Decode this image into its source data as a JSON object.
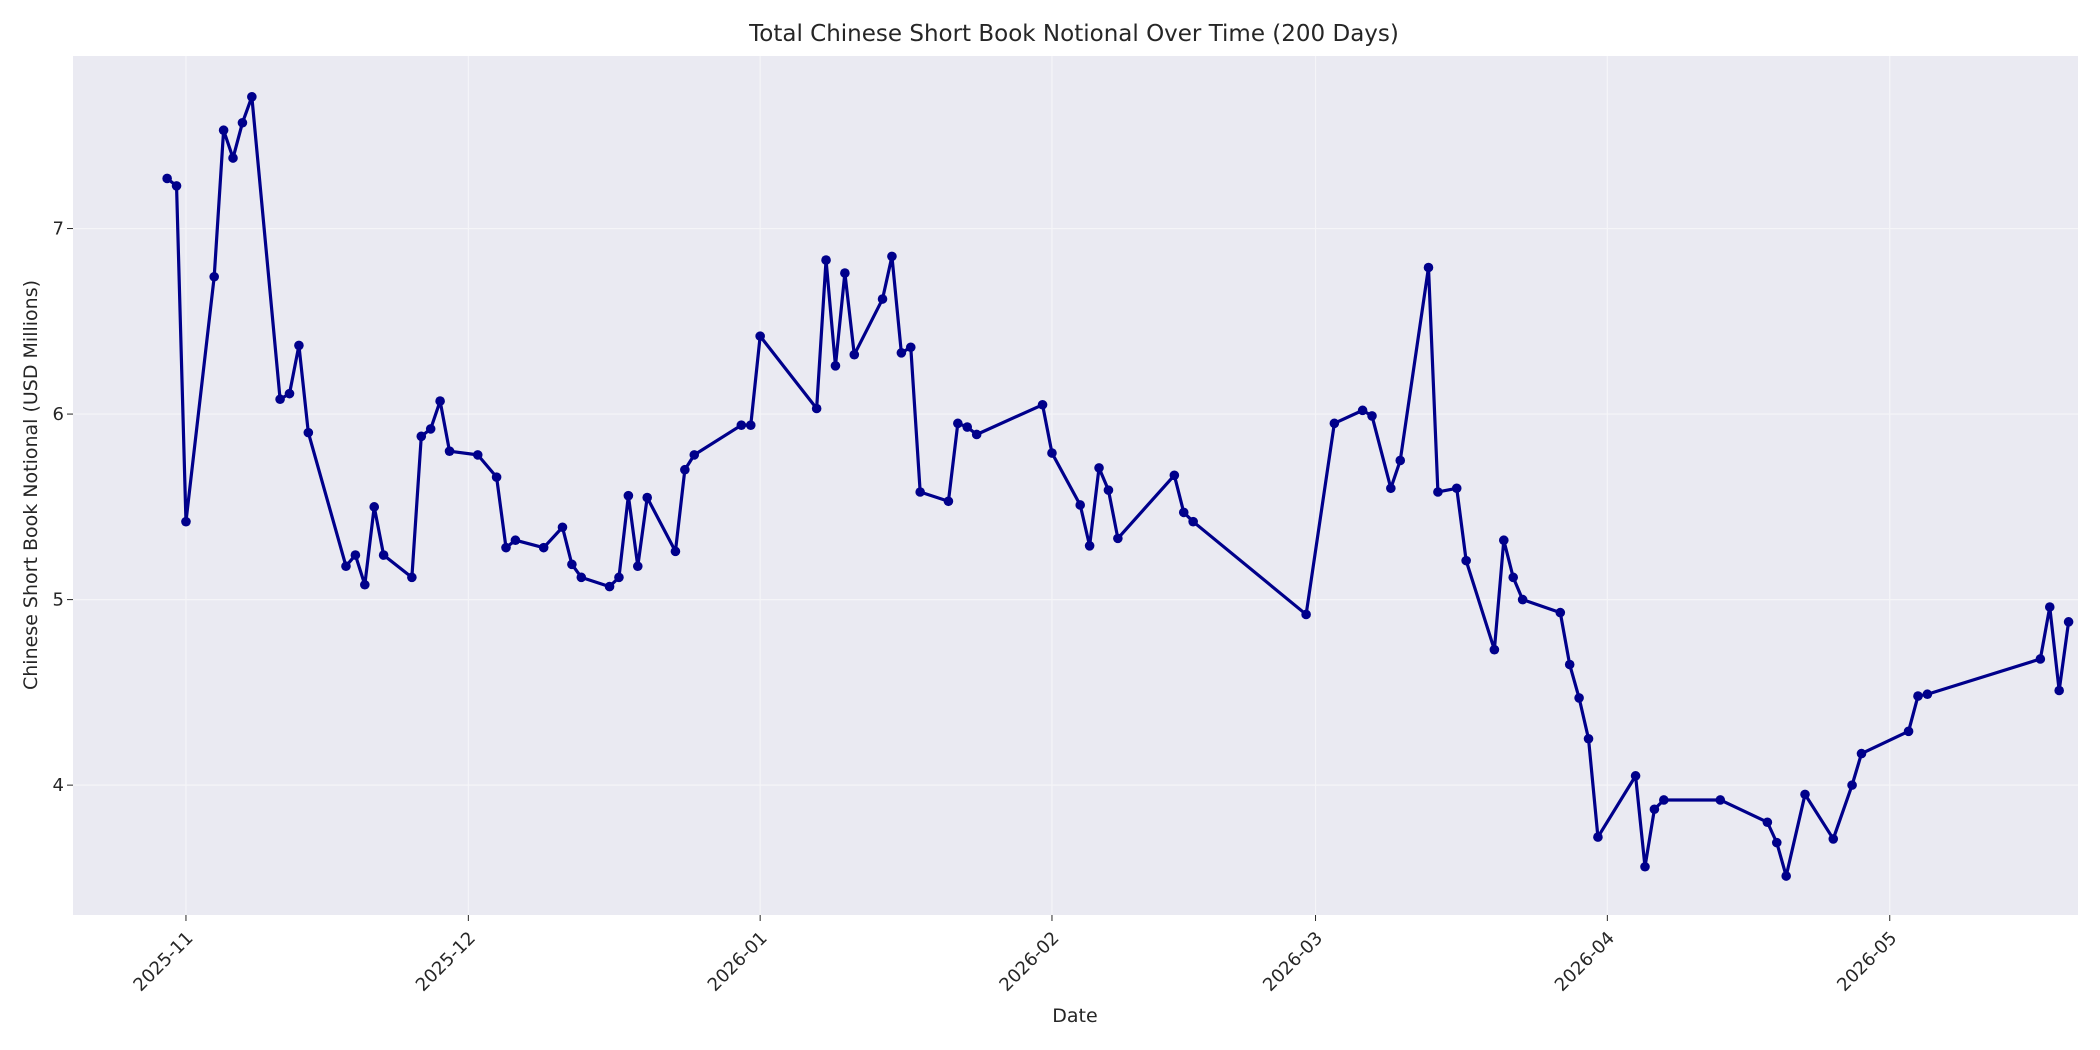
{
  "chart_data": {
    "type": "line",
    "title": "Total Chinese Short Book Notional Over Time (200 Days)",
    "xlabel": "Date",
    "ylabel": "Chinese Short Book Notional (USD Millions)",
    "x_axis": {
      "kind": "date",
      "range": [
        "2025-10-20",
        "2026-05-21"
      ],
      "tick_dates": [
        "2025-11-01",
        "2025-12-01",
        "2026-01-01",
        "2026-02-01",
        "2026-03-01",
        "2026-04-01",
        "2026-05-01"
      ],
      "tick_labels": [
        "2025-11",
        "2025-12",
        "2026-01",
        "2026-02",
        "2026-03",
        "2026-04",
        "2026-05"
      ]
    },
    "y_axis": {
      "range": [
        3.3,
        7.93
      ],
      "ticks": [
        4,
        5,
        6,
        7
      ],
      "tick_labels": [
        "4",
        "5",
        "6",
        "7"
      ]
    },
    "grid": true,
    "colors": {
      "line": "#00008b",
      "plot_background": "#eaeaf2",
      "grid": "#f5f5f8",
      "text": "#262626"
    },
    "series": [
      {
        "points": [
          [
            "2025-10-30",
            7.27
          ],
          [
            "2025-10-31",
            7.23
          ],
          [
            "2025-11-01",
            5.42
          ],
          [
            "2025-11-04",
            6.74
          ],
          [
            "2025-11-05",
            7.53
          ],
          [
            "2025-11-06",
            7.38
          ],
          [
            "2025-11-07",
            7.57
          ],
          [
            "2025-11-08",
            7.71
          ],
          [
            "2025-11-11",
            6.08
          ],
          [
            "2025-11-12",
            6.11
          ],
          [
            "2025-11-13",
            6.37
          ],
          [
            "2025-11-14",
            5.9
          ],
          [
            "2025-11-18",
            5.18
          ],
          [
            "2025-11-19",
            5.24
          ],
          [
            "2025-11-20",
            5.08
          ],
          [
            "2025-11-21",
            5.5
          ],
          [
            "2025-11-22",
            5.24
          ],
          [
            "2025-11-25",
            5.12
          ],
          [
            "2025-11-26",
            5.88
          ],
          [
            "2025-11-27",
            5.92
          ],
          [
            "2025-11-28",
            6.07
          ],
          [
            "2025-11-29",
            5.8
          ],
          [
            "2025-12-02",
            5.78
          ],
          [
            "2025-12-04",
            5.66
          ],
          [
            "2025-12-05",
            5.28
          ],
          [
            "2025-12-06",
            5.32
          ],
          [
            "2025-12-09",
            5.28
          ],
          [
            "2025-12-11",
            5.39
          ],
          [
            "2025-12-12",
            5.19
          ],
          [
            "2025-12-13",
            5.12
          ],
          [
            "2025-12-16",
            5.07
          ],
          [
            "2025-12-17",
            5.12
          ],
          [
            "2025-12-18",
            5.56
          ],
          [
            "2025-12-19",
            5.18
          ],
          [
            "2025-12-20",
            5.55
          ],
          [
            "2025-12-23",
            5.26
          ],
          [
            "2025-12-24",
            5.7
          ],
          [
            "2025-12-25",
            5.78
          ],
          [
            "2025-12-30",
            5.94
          ],
          [
            "2025-12-31",
            5.94
          ],
          [
            "2026-01-01",
            6.42
          ],
          [
            "2026-01-07",
            6.03
          ],
          [
            "2026-01-08",
            6.83
          ],
          [
            "2026-01-09",
            6.26
          ],
          [
            "2026-01-10",
            6.76
          ],
          [
            "2026-01-11",
            6.32
          ],
          [
            "2026-01-14",
            6.62
          ],
          [
            "2026-01-15",
            6.85
          ],
          [
            "2026-01-16",
            6.33
          ],
          [
            "2026-01-17",
            6.36
          ],
          [
            "2026-01-18",
            5.58
          ],
          [
            "2026-01-21",
            5.53
          ],
          [
            "2026-01-22",
            5.95
          ],
          [
            "2026-01-23",
            5.93
          ],
          [
            "2026-01-24",
            5.89
          ],
          [
            "2026-01-31",
            6.05
          ],
          [
            "2026-02-01",
            5.79
          ],
          [
            "2026-02-04",
            5.51
          ],
          [
            "2026-02-05",
            5.29
          ],
          [
            "2026-02-06",
            5.71
          ],
          [
            "2026-02-07",
            5.59
          ],
          [
            "2026-02-08",
            5.33
          ],
          [
            "2026-02-14",
            5.67
          ],
          [
            "2026-02-15",
            5.47
          ],
          [
            "2026-02-16",
            5.42
          ],
          [
            "2026-02-28",
            4.92
          ],
          [
            "2026-03-03",
            5.95
          ],
          [
            "2026-03-06",
            6.02
          ],
          [
            "2026-03-07",
            5.99
          ],
          [
            "2026-03-09",
            5.6
          ],
          [
            "2026-03-10",
            5.75
          ],
          [
            "2026-03-13",
            6.79
          ],
          [
            "2026-03-14",
            5.58
          ],
          [
            "2026-03-16",
            5.6
          ],
          [
            "2026-03-17",
            5.21
          ],
          [
            "2026-03-20",
            4.73
          ],
          [
            "2026-03-21",
            5.32
          ],
          [
            "2026-03-22",
            5.12
          ],
          [
            "2026-03-23",
            5.0
          ],
          [
            "2026-03-27",
            4.93
          ],
          [
            "2026-03-28",
            4.65
          ],
          [
            "2026-03-29",
            4.47
          ],
          [
            "2026-03-30",
            4.25
          ],
          [
            "2026-03-31",
            3.72
          ],
          [
            "2026-04-04",
            4.05
          ],
          [
            "2026-04-05",
            3.56
          ],
          [
            "2026-04-06",
            3.87
          ],
          [
            "2026-04-07",
            3.92
          ],
          [
            "2026-04-13",
            3.92
          ],
          [
            "2026-04-18",
            3.8
          ],
          [
            "2026-04-19",
            3.69
          ],
          [
            "2026-04-20",
            3.51
          ],
          [
            "2026-04-22",
            3.95
          ],
          [
            "2026-04-25",
            3.71
          ],
          [
            "2026-04-27",
            4.0
          ],
          [
            "2026-04-28",
            4.17
          ],
          [
            "2026-05-03",
            4.29
          ],
          [
            "2026-05-04",
            4.48
          ],
          [
            "2026-05-05",
            4.49
          ],
          [
            "2026-05-17",
            4.68
          ],
          [
            "2026-05-18",
            4.96
          ],
          [
            "2026-05-19",
            4.51
          ],
          [
            "2026-05-20",
            4.88
          ]
        ]
      }
    ]
  }
}
